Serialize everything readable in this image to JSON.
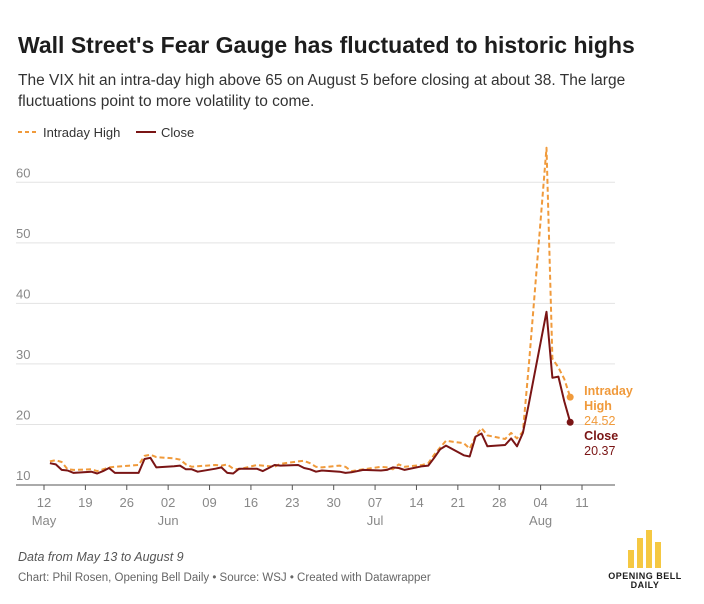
{
  "header": {
    "title": "Wall Street's Fear Gauge has fluctuated to historic highs",
    "subtitle": "The VIX hit an intra-day high above 65 on August 5 before closing at about 38. The large fluctuations point to more volatility to come."
  },
  "legend": {
    "items": [
      {
        "label": "Intraday High",
        "color": "#f09a3b",
        "dashed": true
      },
      {
        "label": "Close",
        "color": "#7a1515",
        "dashed": false
      }
    ]
  },
  "footer": {
    "note": "Data from May 13 to August 9",
    "credits": "Chart: Phil Rosen, Opening Bell Daily • Source: WSJ • Created with Datawrapper",
    "logo_line1": "OPENING BELL",
    "logo_line2": "DAILY",
    "logo_color": "#f5c842"
  },
  "chart_data": {
    "type": "line",
    "ylim": [
      10,
      65
    ],
    "yticks": [
      10,
      20,
      30,
      40,
      50,
      60
    ],
    "x_range": [
      "2024-05-12",
      "2024-08-11"
    ],
    "grid": true,
    "legend_position": "top-left",
    "xticks": [
      {
        "date": "2024-05-12",
        "label": "12",
        "month": "May"
      },
      {
        "date": "2024-05-19",
        "label": "19",
        "month": ""
      },
      {
        "date": "2024-05-26",
        "label": "26",
        "month": ""
      },
      {
        "date": "2024-06-02",
        "label": "02",
        "month": "Jun"
      },
      {
        "date": "2024-06-09",
        "label": "09",
        "month": ""
      },
      {
        "date": "2024-06-16",
        "label": "16",
        "month": ""
      },
      {
        "date": "2024-06-23",
        "label": "23",
        "month": ""
      },
      {
        "date": "2024-06-30",
        "label": "30",
        "month": ""
      },
      {
        "date": "2024-07-07",
        "label": "07",
        "month": "Jul"
      },
      {
        "date": "2024-07-14",
        "label": "14",
        "month": ""
      },
      {
        "date": "2024-07-21",
        "label": "21",
        "month": ""
      },
      {
        "date": "2024-07-28",
        "label": "28",
        "month": ""
      },
      {
        "date": "2024-08-04",
        "label": "04",
        "month": "Aug"
      },
      {
        "date": "2024-08-11",
        "label": "11",
        "month": ""
      }
    ],
    "series": [
      {
        "name": "Intraday High",
        "color": "#f09a3b",
        "dashed": true,
        "end_label": [
          "Intraday",
          "High"
        ],
        "end_value": "24.52",
        "points": [
          [
            "2024-05-13",
            13.9
          ],
          [
            "2024-05-14",
            14.1
          ],
          [
            "2024-05-15",
            13.8
          ],
          [
            "2024-05-16",
            12.6
          ],
          [
            "2024-05-17",
            12.5
          ],
          [
            "2024-05-20",
            12.6
          ],
          [
            "2024-05-21",
            12.3
          ],
          [
            "2024-05-22",
            12.6
          ],
          [
            "2024-05-23",
            12.9
          ],
          [
            "2024-05-24",
            13.0
          ],
          [
            "2024-05-28",
            13.3
          ],
          [
            "2024-05-29",
            14.8
          ],
          [
            "2024-05-30",
            15.0
          ],
          [
            "2024-05-31",
            14.6
          ],
          [
            "2024-06-03",
            14.4
          ],
          [
            "2024-06-04",
            14.2
          ],
          [
            "2024-06-05",
            13.4
          ],
          [
            "2024-06-06",
            13.0
          ],
          [
            "2024-06-07",
            13.1
          ],
          [
            "2024-06-10",
            13.3
          ],
          [
            "2024-06-11",
            13.2
          ],
          [
            "2024-06-12",
            13.4
          ],
          [
            "2024-06-13",
            12.7
          ],
          [
            "2024-06-14",
            12.6
          ],
          [
            "2024-06-17",
            13.3
          ],
          [
            "2024-06-18",
            13.2
          ],
          [
            "2024-06-20",
            13.0
          ],
          [
            "2024-06-21",
            13.5
          ],
          [
            "2024-06-24",
            13.9
          ],
          [
            "2024-06-25",
            14.0
          ],
          [
            "2024-06-26",
            13.6
          ],
          [
            "2024-06-27",
            13.0
          ],
          [
            "2024-06-28",
            12.9
          ],
          [
            "2024-07-01",
            13.2
          ],
          [
            "2024-07-02",
            13.0
          ],
          [
            "2024-07-03",
            12.3
          ],
          [
            "2024-07-05",
            12.6
          ],
          [
            "2024-07-08",
            13.0
          ],
          [
            "2024-07-09",
            12.9
          ],
          [
            "2024-07-10",
            12.6
          ],
          [
            "2024-07-11",
            13.4
          ],
          [
            "2024-07-12",
            13.0
          ],
          [
            "2024-07-15",
            13.3
          ],
          [
            "2024-07-16",
            13.6
          ],
          [
            "2024-07-17",
            15.0
          ],
          [
            "2024-07-18",
            16.2
          ],
          [
            "2024-07-19",
            17.3
          ],
          [
            "2024-07-22",
            16.9
          ],
          [
            "2024-07-23",
            16.0
          ],
          [
            "2024-07-24",
            18.1
          ],
          [
            "2024-07-25",
            19.4
          ],
          [
            "2024-07-26",
            18.2
          ],
          [
            "2024-07-29",
            17.6
          ],
          [
            "2024-07-30",
            18.6
          ],
          [
            "2024-07-31",
            17.7
          ],
          [
            "2024-08-01",
            18.8
          ],
          [
            "2024-08-02",
            29.7
          ],
          [
            "2024-08-05",
            65.7
          ],
          [
            "2024-08-06",
            30.9
          ],
          [
            "2024-08-07",
            29.4
          ],
          [
            "2024-08-08",
            27.5
          ],
          [
            "2024-08-09",
            24.52
          ]
        ]
      },
      {
        "name": "Close",
        "color": "#7a1515",
        "dashed": false,
        "end_label": [
          "Close"
        ],
        "end_value": "20.37",
        "points": [
          [
            "2024-05-13",
            13.6
          ],
          [
            "2024-05-14",
            13.4
          ],
          [
            "2024-05-15",
            12.5
          ],
          [
            "2024-05-16",
            12.4
          ],
          [
            "2024-05-17",
            12.0
          ],
          [
            "2024-05-20",
            12.2
          ],
          [
            "2024-05-21",
            11.9
          ],
          [
            "2024-05-22",
            12.3
          ],
          [
            "2024-05-23",
            12.8
          ],
          [
            "2024-05-24",
            12.0
          ],
          [
            "2024-05-28",
            12.0
          ],
          [
            "2024-05-29",
            14.3
          ],
          [
            "2024-05-30",
            14.5
          ],
          [
            "2024-05-31",
            12.9
          ],
          [
            "2024-06-03",
            13.1
          ],
          [
            "2024-06-04",
            13.2
          ],
          [
            "2024-06-05",
            12.6
          ],
          [
            "2024-06-06",
            12.6
          ],
          [
            "2024-06-07",
            12.2
          ],
          [
            "2024-06-10",
            12.7
          ],
          [
            "2024-06-11",
            12.9
          ],
          [
            "2024-06-12",
            12.0
          ],
          [
            "2024-06-13",
            11.9
          ],
          [
            "2024-06-14",
            12.7
          ],
          [
            "2024-06-17",
            12.7
          ],
          [
            "2024-06-18",
            12.3
          ],
          [
            "2024-06-20",
            13.3
          ],
          [
            "2024-06-21",
            13.2
          ],
          [
            "2024-06-24",
            13.3
          ],
          [
            "2024-06-25",
            12.8
          ],
          [
            "2024-06-26",
            12.6
          ],
          [
            "2024-06-27",
            12.2
          ],
          [
            "2024-06-28",
            12.4
          ],
          [
            "2024-07-01",
            12.2
          ],
          [
            "2024-07-02",
            12.0
          ],
          [
            "2024-07-03",
            12.1
          ],
          [
            "2024-07-05",
            12.5
          ],
          [
            "2024-07-08",
            12.4
          ],
          [
            "2024-07-09",
            12.5
          ],
          [
            "2024-07-10",
            12.9
          ],
          [
            "2024-07-11",
            12.8
          ],
          [
            "2024-07-12",
            12.5
          ],
          [
            "2024-07-15",
            13.1
          ],
          [
            "2024-07-16",
            13.2
          ],
          [
            "2024-07-17",
            14.5
          ],
          [
            "2024-07-18",
            15.9
          ],
          [
            "2024-07-19",
            16.5
          ],
          [
            "2024-07-22",
            14.9
          ],
          [
            "2024-07-23",
            14.7
          ],
          [
            "2024-07-24",
            18.0
          ],
          [
            "2024-07-25",
            18.5
          ],
          [
            "2024-07-26",
            16.4
          ],
          [
            "2024-07-29",
            16.6
          ],
          [
            "2024-07-30",
            17.7
          ],
          [
            "2024-07-31",
            16.4
          ],
          [
            "2024-08-01",
            18.6
          ],
          [
            "2024-08-02",
            23.4
          ],
          [
            "2024-08-05",
            38.6
          ],
          [
            "2024-08-06",
            27.7
          ],
          [
            "2024-08-07",
            27.9
          ],
          [
            "2024-08-08",
            23.8
          ],
          [
            "2024-08-09",
            20.37
          ]
        ]
      }
    ]
  }
}
